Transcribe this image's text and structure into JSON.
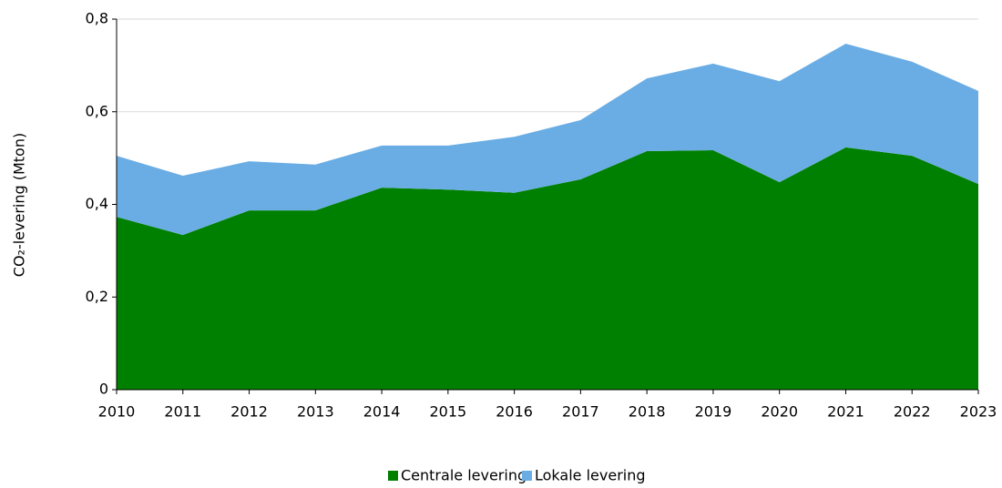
{
  "chart_data": {
    "type": "stacked-area",
    "y_label": "CO₂-levering (Mton)",
    "categories": [
      "2010",
      "2011",
      "2012",
      "2013",
      "2014",
      "2015",
      "2016",
      "2017",
      "2018",
      "2019",
      "2020",
      "2021",
      "2022",
      "2023"
    ],
    "series": [
      {
        "name": "Centrale levering",
        "color": "#008000",
        "values": [
          0.373,
          0.334,
          0.387,
          0.387,
          0.436,
          0.432,
          0.425,
          0.454,
          0.515,
          0.517,
          0.448,
          0.523,
          0.505,
          0.444
        ]
      },
      {
        "name": "Lokale levering",
        "color": "#6aade4",
        "values": [
          0.132,
          0.128,
          0.106,
          0.099,
          0.091,
          0.095,
          0.121,
          0.128,
          0.157,
          0.187,
          0.218,
          0.224,
          0.203,
          0.201
        ]
      }
    ],
    "ylim": [
      0,
      0.8
    ],
    "yticks": [
      0,
      {
        "value": 0.2,
        "label": "0,2"
      },
      {
        "value": 0.4,
        "label": "0,4"
      },
      {
        "value": 0.6,
        "label": "0,6"
      },
      {
        "value": 0.8,
        "label": "0,8"
      }
    ],
    "grid": true,
    "legend": "bottom"
  }
}
